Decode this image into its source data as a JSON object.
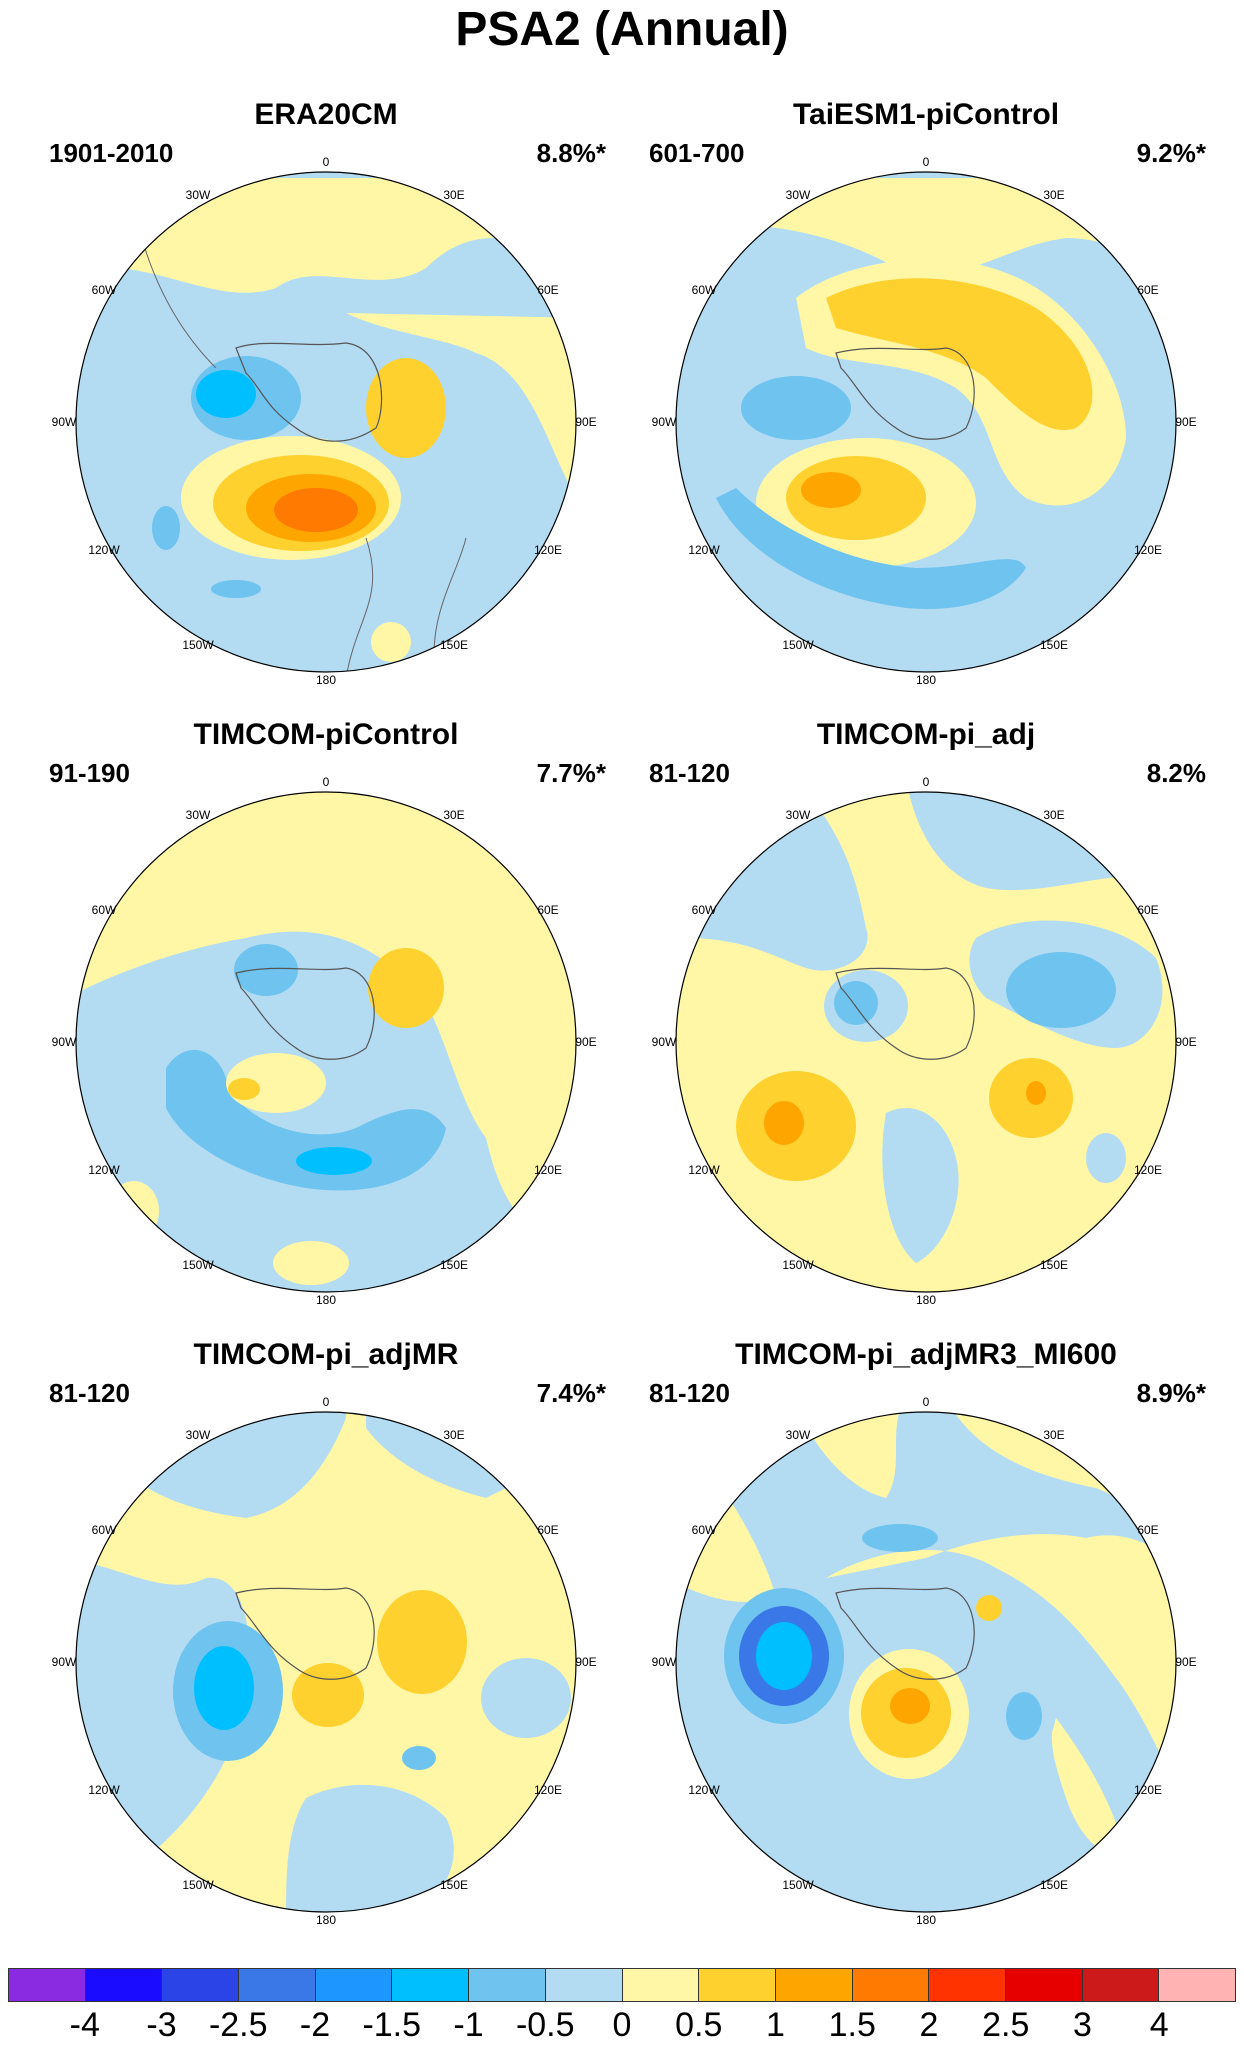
{
  "figure": {
    "title": "PSA2 (Annual)"
  },
  "lon_labels": [
    "0",
    "30E",
    "60E",
    "90E",
    "120E",
    "150E",
    "180",
    "150W",
    "120W",
    "90W",
    "60W",
    "30W"
  ],
  "panels": [
    {
      "title": "ERA20CM",
      "period": "1901-2010",
      "percent": "8.8%*"
    },
    {
      "title": "TaiESM1-piControl",
      "period": "601-700",
      "percent": "9.2%*"
    },
    {
      "title": "TIMCOM-piControl",
      "period": "91-190",
      "percent": "7.7%*"
    },
    {
      "title": "TIMCOM-pi_adj",
      "period": "81-120",
      "percent": "8.2%"
    },
    {
      "title": "TIMCOM-pi_adjMR",
      "period": "81-120",
      "percent": "7.4%*"
    },
    {
      "title": "TIMCOM-pi_adjMR3_MI600",
      "period": "81-120",
      "percent": "8.9%*"
    }
  ],
  "colorbar": {
    "colors": [
      "#8a2be2",
      "#1a0dff",
      "#2b44e8",
      "#3a78e8",
      "#1e96ff",
      "#00bfff",
      "#6fc3ef",
      "#b3dcf2",
      "#fff7a6",
      "#ffd12e",
      "#ffa500",
      "#ff7a00",
      "#ff3300",
      "#e60000",
      "#cc1a1a",
      "#ffb3b3"
    ],
    "labels": [
      "-4",
      "-3",
      "-2.5",
      "-2",
      "-1.5",
      "-1",
      "-0.5",
      "0",
      "0.5",
      "1",
      "1.5",
      "2",
      "2.5",
      "3",
      "4"
    ]
  }
}
